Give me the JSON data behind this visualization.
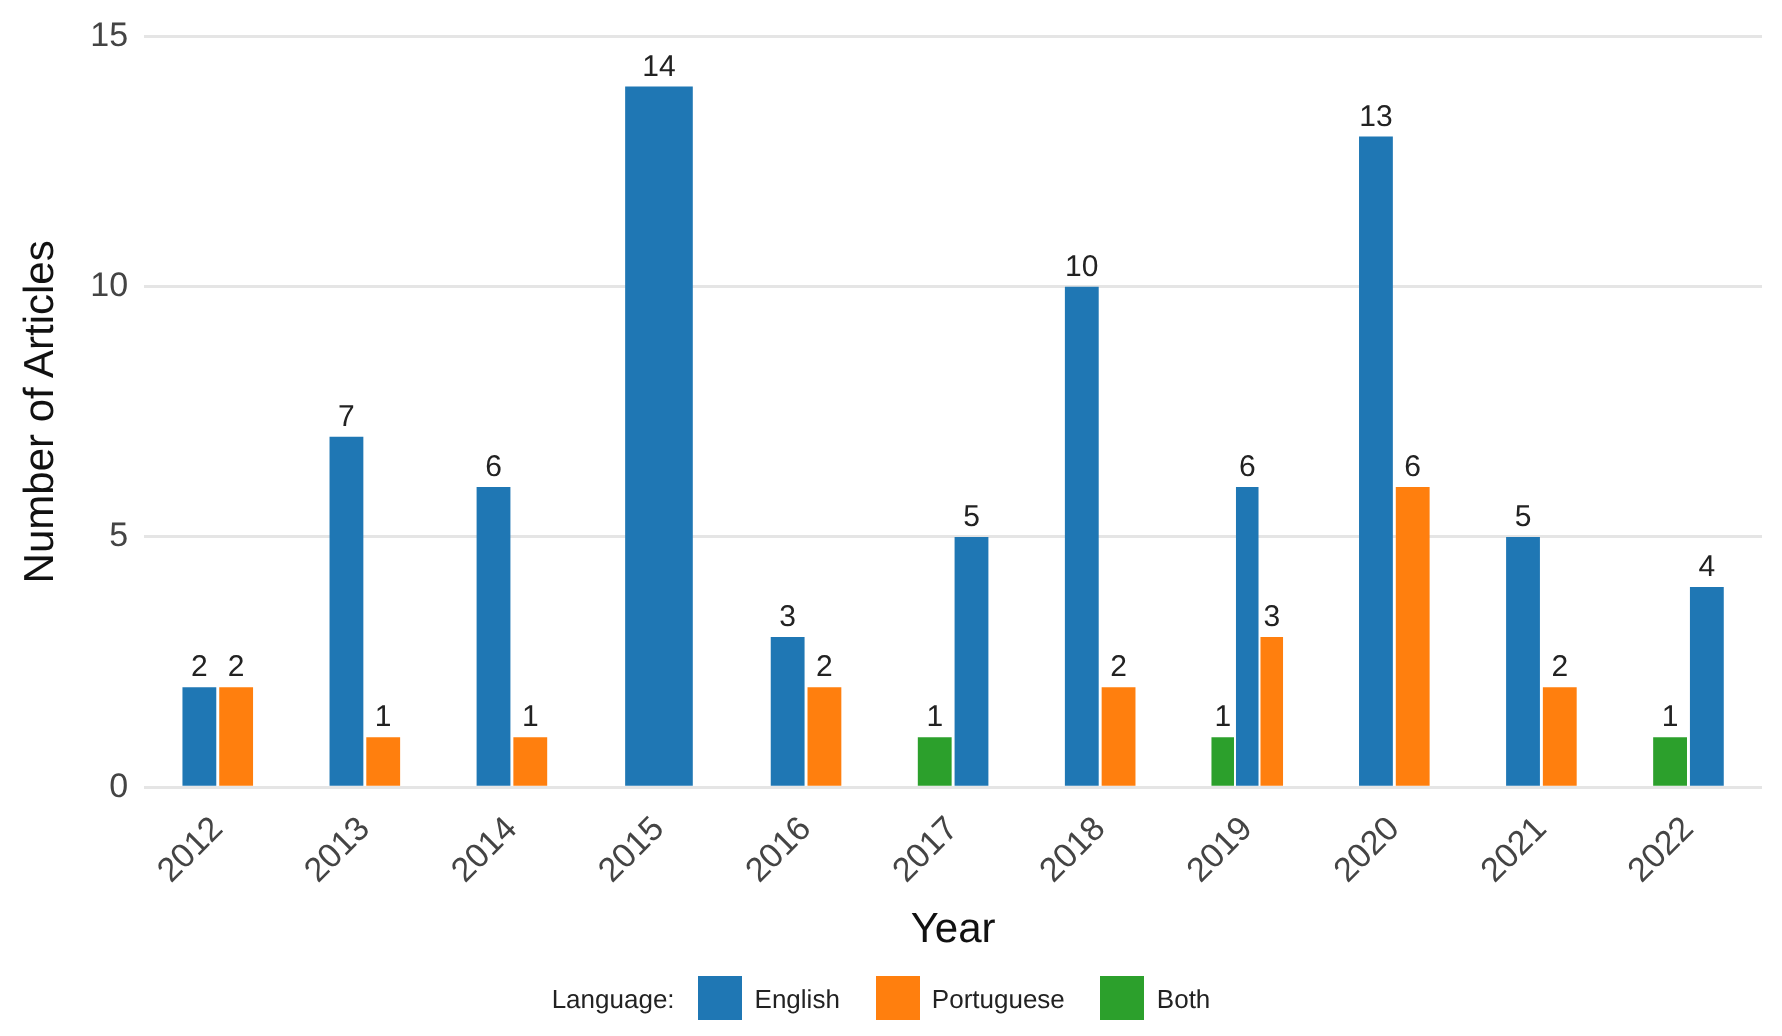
{
  "chart_data": {
    "type": "bar",
    "xlabel": "Year",
    "ylabel": "Number of Articles",
    "legend_title": "Language:",
    "legend": "bottom",
    "grid": "y",
    "data_labels": true,
    "categories": [
      "2012",
      "2013",
      "2014",
      "2015",
      "2016",
      "2017",
      "2018",
      "2019",
      "2020",
      "2021",
      "2022"
    ],
    "series": [
      {
        "name": "English",
        "color": "#1f77b4",
        "values": [
          2,
          7,
          6,
          14,
          3,
          5,
          10,
          6,
          13,
          5,
          4
        ]
      },
      {
        "name": "Portuguese",
        "color": "#ff7f0e",
        "values": [
          2,
          1,
          1,
          null,
          2,
          null,
          2,
          3,
          6,
          2,
          null
        ]
      },
      {
        "name": "Both",
        "color": "#2ca02c",
        "values": [
          null,
          null,
          null,
          null,
          null,
          1,
          null,
          1,
          null,
          null,
          1
        ]
      }
    ],
    "ylim": [
      0,
      15
    ],
    "yticks": [
      0,
      5,
      10,
      15
    ]
  }
}
